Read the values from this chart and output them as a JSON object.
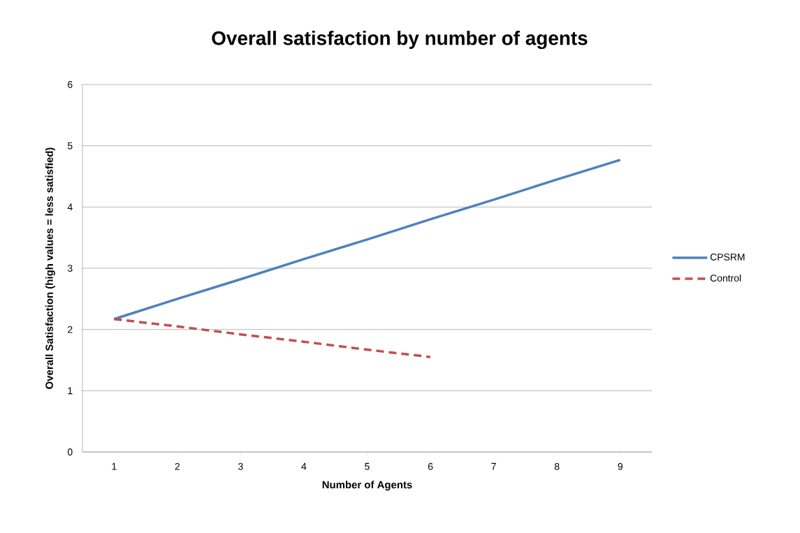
{
  "chart_data": {
    "type": "line",
    "title": "Overall satisfaction by number of agents",
    "xlabel": "Number of Agents",
    "ylabel": "Overall Satisfaction (high values = less satisfied)",
    "categories": [
      "1",
      "2",
      "3",
      "4",
      "5",
      "6",
      "7",
      "8",
      "9"
    ],
    "series": [
      {
        "name": "CPSRM",
        "color": "#4f81bd",
        "line_style": "solid",
        "values": [
          2.17,
          2.5,
          2.82,
          3.15,
          3.47,
          3.8,
          4.12,
          4.45,
          4.77
        ]
      },
      {
        "name": "Control",
        "color": "#c0504d",
        "line_style": "dashed",
        "values": [
          2.17,
          2.05,
          1.92,
          1.8,
          1.67,
          1.55,
          null,
          null,
          null
        ]
      }
    ],
    "ylim": [
      0,
      6
    ],
    "yticks": [
      0,
      1,
      2,
      3,
      4,
      5,
      6
    ],
    "grid": "y",
    "legend": "right"
  }
}
